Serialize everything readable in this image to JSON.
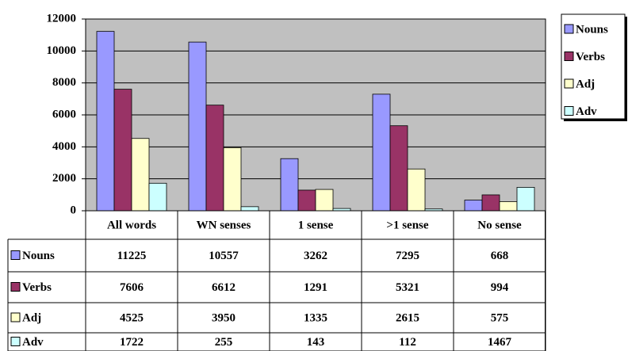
{
  "chart_data": {
    "type": "bar",
    "categories": [
      "All words",
      "WN senses",
      "1 sense",
      ">1 sense",
      "No sense"
    ],
    "series": [
      {
        "name": "Nouns",
        "color": "#9999ff",
        "values": [
          11225,
          10557,
          3262,
          7295,
          668
        ]
      },
      {
        "name": "Verbs",
        "color": "#993366",
        "values": [
          7606,
          6612,
          1291,
          5321,
          994
        ]
      },
      {
        "name": "Adj",
        "color": "#ffffcc",
        "values": [
          4525,
          3950,
          1335,
          2615,
          575
        ]
      },
      {
        "name": "Adv",
        "color": "#ccffff",
        "values": [
          1722,
          255,
          143,
          112,
          1467
        ]
      }
    ],
    "ylim": [
      0,
      12000
    ],
    "yticks": [
      0,
      2000,
      4000,
      6000,
      8000,
      10000,
      12000
    ],
    "grid": true,
    "plot_background": "#c0c0c0",
    "legend": "right",
    "data_table": true
  }
}
